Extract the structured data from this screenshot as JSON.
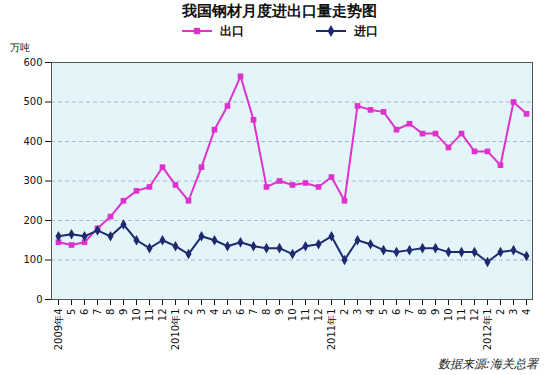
{
  "chart_data": {
    "type": "line",
    "title": "我国钢材月度进出口量走势图",
    "y_label": "万吨",
    "source": "数据来源:海关总署",
    "categories": [
      "2009年4",
      "5",
      "6",
      "7",
      "8",
      "9",
      "10",
      "11",
      "12",
      "2010年1",
      "2",
      "3",
      "4",
      "5",
      "6",
      "7",
      "8",
      "9",
      "10",
      "11",
      "12",
      "2011年1",
      "2",
      "3",
      "4",
      "5",
      "6",
      "7",
      "8",
      "9",
      "10",
      "11",
      "12",
      "2012年1",
      "2",
      "3",
      "4"
    ],
    "series": [
      {
        "name": "出口",
        "color": "#dd33cc",
        "marker": "square",
        "values": [
          145,
          138,
          145,
          180,
          210,
          250,
          275,
          285,
          335,
          290,
          250,
          335,
          430,
          490,
          565,
          455,
          285,
          300,
          290,
          295,
          285,
          310,
          250,
          490,
          480,
          475,
          430,
          445,
          420,
          420,
          385,
          420,
          375,
          375,
          340,
          500,
          470
        ]
      },
      {
        "name": "进口",
        "color": "#1f2a6e",
        "marker": "diamond",
        "values": [
          160,
          165,
          160,
          175,
          160,
          190,
          150,
          130,
          150,
          135,
          115,
          160,
          150,
          135,
          145,
          135,
          130,
          130,
          115,
          135,
          140,
          160,
          100,
          150,
          140,
          125,
          120,
          125,
          130,
          130,
          120,
          120,
          120,
          95,
          120,
          125,
          110
        ]
      }
    ],
    "ylim": [
      0,
      600
    ],
    "yticks": [
      0,
      100,
      200,
      300,
      400,
      500,
      600
    ],
    "grid": true,
    "legend": "top"
  }
}
